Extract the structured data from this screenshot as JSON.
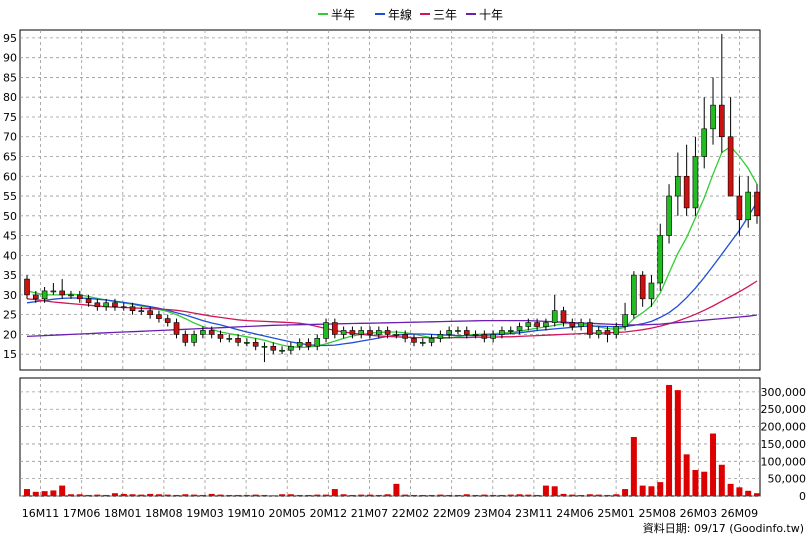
{
  "chart_data": {
    "type": "candlestick",
    "legend": {
      "position": "top-center",
      "items": [
        {
          "key": "ma_half",
          "name": "半年",
          "color": "#33cc33"
        },
        {
          "key": "ma_year",
          "name": "年線",
          "color": "#1e4fd8"
        },
        {
          "key": "ma_3y",
          "name": "三年",
          "color": "#d4145a"
        },
        {
          "key": "ma_10y",
          "name": "十年",
          "color": "#6a1fb0"
        }
      ]
    },
    "x_ticks": [
      "16M11",
      "17M06",
      "18M01",
      "18M08",
      "19M03",
      "19M10",
      "20M05",
      "20M12",
      "21M07",
      "22M02",
      "22M09",
      "23M04",
      "23M11",
      "24M06",
      "25M01",
      "25M08",
      "26M03",
      "26M09"
    ],
    "price_axis": {
      "ticks": [
        15,
        20,
        25,
        30,
        35,
        40,
        45,
        50,
        55,
        60,
        65,
        70,
        75,
        80,
        85,
        90,
        95
      ],
      "ylim": [
        11,
        97
      ]
    },
    "volume_axis": {
      "ticks": [
        "0",
        "50,000",
        "100,000",
        "150,000",
        "200,000",
        "250,000",
        "300,000"
      ],
      "ylim": [
        0,
        340000
      ]
    },
    "grid": true,
    "colors": {
      "up": "#22bb22",
      "down": "#cc1111",
      "volume": "#dd0000",
      "grid": "#999999"
    },
    "candles": {
      "open": [
        34,
        30,
        29,
        31,
        31,
        30,
        30,
        29,
        28,
        27,
        28,
        27,
        27,
        26,
        26,
        25,
        24,
        23,
        20,
        18,
        20,
        21,
        20,
        19,
        19,
        18,
        18,
        17,
        17,
        16,
        16,
        17,
        18,
        17,
        19,
        23,
        20,
        21,
        20,
        21,
        20,
        21,
        20,
        20,
        19,
        18,
        18,
        19,
        20,
        21,
        21,
        20,
        20,
        19,
        20,
        21,
        21,
        22,
        23,
        22,
        23,
        26,
        23,
        22,
        23,
        20,
        21,
        20,
        22,
        25,
        35,
        29,
        33,
        45,
        55,
        60,
        52,
        65,
        72,
        78,
        70,
        55,
        49,
        56
      ],
      "close": [
        30,
        29,
        31,
        31,
        30,
        30,
        29,
        28,
        27,
        28,
        27,
        27,
        26,
        26,
        25,
        24,
        23,
        20,
        18,
        20,
        21,
        20,
        19,
        19,
        18,
        18,
        17,
        17,
        16,
        16,
        17,
        18,
        17,
        19,
        23,
        20,
        21,
        20,
        21,
        20,
        21,
        20,
        20,
        19,
        18,
        18,
        19,
        20,
        21,
        21,
        20,
        20,
        19,
        20,
        21,
        21,
        22,
        23,
        22,
        23,
        26,
        23,
        22,
        23,
        20,
        21,
        20,
        22,
        25,
        35,
        29,
        33,
        45,
        55,
        60,
        52,
        65,
        72,
        78,
        70,
        55,
        49,
        56,
        50
      ],
      "high": [
        35,
        31,
        32,
        33,
        34,
        31,
        31,
        30,
        29,
        29,
        29,
        28,
        28,
        27,
        27,
        26,
        25,
        24,
        21,
        21,
        22,
        22,
        21,
        20,
        20,
        19,
        19,
        18,
        18,
        17,
        18,
        19,
        19,
        20,
        24,
        24,
        22,
        22,
        22,
        22,
        22,
        22,
        21,
        21,
        20,
        19,
        20,
        21,
        22,
        22,
        22,
        21,
        21,
        21,
        22,
        22,
        23,
        24,
        24,
        24,
        30,
        27,
        24,
        24,
        24,
        22,
        22,
        23,
        28,
        36,
        36,
        35,
        48,
        58,
        66,
        68,
        70,
        80,
        85,
        96,
        80,
        60,
        60,
        58
      ],
      "low": [
        29,
        28,
        28,
        30,
        29,
        29,
        28,
        27,
        26,
        26,
        26,
        26,
        25,
        25,
        24,
        23,
        22,
        19,
        17,
        17,
        19,
        19,
        18,
        18,
        17,
        17,
        16,
        13,
        15,
        15,
        15,
        16,
        16,
        16,
        18,
        19,
        19,
        19,
        19,
        19,
        19,
        19,
        19,
        18,
        17,
        17,
        17,
        18,
        19,
        20,
        19,
        19,
        18,
        18,
        19,
        20,
        20,
        21,
        21,
        21,
        22,
        22,
        21,
        21,
        19,
        19,
        18,
        19,
        21,
        24,
        27,
        27,
        31,
        43,
        50,
        50,
        50,
        62,
        68,
        66,
        65,
        45,
        47,
        48
      ],
      "volume": [
        20000,
        12000,
        14000,
        16000,
        30000,
        5000,
        5000,
        3000,
        4000,
        3000,
        8000,
        6000,
        5000,
        4000,
        6000,
        5000,
        4000,
        3000,
        5000,
        4000,
        3000,
        6000,
        4000,
        3000,
        3000,
        3000,
        4000,
        3000,
        2000,
        5000,
        5000,
        3000,
        3000,
        4000,
        4000,
        20000,
        5000,
        3000,
        4000,
        4000,
        3000,
        5000,
        35000,
        4000,
        3000,
        3000,
        3000,
        4000,
        3000,
        3000,
        5000,
        3000,
        4000,
        3000,
        3000,
        4000,
        5000,
        4000,
        3000,
        30000,
        28000,
        6000,
        4000,
        3000,
        5000,
        4000,
        3000,
        5000,
        20000,
        170000,
        30000,
        28000,
        40000,
        320000,
        305000,
        120000,
        75000,
        70000,
        180000,
        90000,
        35000,
        25000,
        15000,
        8000
      ]
    },
    "ma_half": [
      31,
      30.5,
      30,
      30,
      30,
      30.2,
      30,
      29.6,
      29.1,
      28.7,
      28.3,
      28,
      27.6,
      27.2,
      26.8,
      26.3,
      25.8,
      25,
      24,
      22.9,
      22,
      21.3,
      20.6,
      20.2,
      19.8,
      19.4,
      19,
      18.5,
      17.9,
      17.3,
      16.9,
      16.7,
      16.8,
      17.1,
      17.6,
      18.3,
      19,
      19.6,
      20,
      20.3,
      20.5,
      20.6,
      20.6,
      20.4,
      20.1,
      19.6,
      19.2,
      19,
      19.1,
      19.4,
      19.8,
      20,
      20.1,
      20.2,
      20.3,
      20.5,
      20.8,
      21.2,
      21.6,
      21.9,
      22.3,
      22.7,
      22.8,
      22.6,
      22.3,
      21.9,
      21.5,
      21.3,
      21.8,
      24,
      25.5,
      27.3,
      30.5,
      35.5,
      40.5,
      44.5,
      49.5,
      54.5,
      60.5,
      66,
      67.5,
      65,
      62,
      58
    ],
    "ma_year": [
      28,
      28.3,
      28.6,
      28.9,
      29.1,
      29.2,
      29.2,
      29.1,
      28.9,
      28.7,
      28.4,
      28.1,
      27.8,
      27.4,
      27,
      26.6,
      26.1,
      25.5,
      24.9,
      24.2,
      23.5,
      22.9,
      22.4,
      21.8,
      21.2,
      20.6,
      20.1,
      19.6,
      19.1,
      18.6,
      18.1,
      17.7,
      17.4,
      17.2,
      17.2,
      17.3,
      17.6,
      17.9,
      18.3,
      18.7,
      19.1,
      19.5,
      19.8,
      20,
      20.1,
      20.1,
      20,
      19.9,
      19.8,
      19.7,
      19.7,
      19.7,
      19.8,
      19.9,
      20,
      20.2,
      20.4,
      20.7,
      21,
      21.2,
      21.4,
      21.6,
      21.8,
      22,
      22.1,
      22.1,
      22,
      21.9,
      22,
      22.3,
      22.7,
      23.3,
      24.3,
      25.5,
      27.2,
      29.3,
      31.7,
      34.4,
      37.3,
      40.3,
      43.3,
      46.3,
      49.8,
      53.5
    ],
    "ma_3y": [
      29,
      28.8,
      28.5,
      28.2,
      28,
      27.8,
      27.6,
      27.4,
      27.2,
      27,
      26.9,
      26.8,
      26.7,
      26.6,
      26.5,
      26.4,
      26.3,
      26.1,
      25.8,
      25.4,
      25,
      24.6,
      24.3,
      24,
      23.7,
      23.5,
      23.4,
      23.3,
      23.2,
      23.1,
      23,
      22.8,
      22.5,
      22,
      21.5,
      21,
      20.6,
      20.3,
      20,
      19.8,
      19.6,
      19.5,
      19.4,
      19.3,
      19.2,
      19.2,
      19.2,
      19.2,
      19.2,
      19.2,
      19.2,
      19.3,
      19.3,
      19.3,
      19.4,
      19.4,
      19.5,
      19.6,
      19.7,
      19.8,
      19.9,
      20,
      20.1,
      20.2,
      20.3,
      20.3,
      20.4,
      20.5,
      20.6,
      20.9,
      21.2,
      21.6,
      22.1,
      22.7,
      23.4,
      24.2,
      25.1,
      26.1,
      27.2,
      28.4,
      29.6,
      30.8,
      32.1,
      33.5
    ],
    "ma_10y": [
      19.5,
      19.6,
      19.7,
      19.8,
      19.9,
      20,
      20.1,
      20.2,
      20.3,
      20.4,
      20.5,
      20.6,
      20.7,
      20.8,
      20.9,
      21,
      21.1,
      21.2,
      21.3,
      21.4,
      21.5,
      21.6,
      21.7,
      21.8,
      21.9,
      22,
      22.1,
      22.2,
      22.3,
      22.35,
      22.4,
      22.45,
      22.5,
      22.55,
      22.6,
      22.65,
      22.7,
      22.75,
      22.8,
      22.85,
      22.9,
      22.95,
      23,
      23.05,
      23.1,
      23.15,
      23.2,
      23.25,
      23.3,
      23.35,
      23.4,
      23.45,
      23.5,
      23.5,
      23.5,
      23.5,
      23.5,
      23.5,
      23.4,
      23.3,
      23.2,
      23.1,
      23,
      22.9,
      22.8,
      22.7,
      22.6,
      22.5,
      22.4,
      22.4,
      22.4,
      22.5,
      22.6,
      22.8,
      23,
      23.2,
      23.4,
      23.6,
      23.8,
      24,
      24.2,
      24.4,
      24.6,
      24.9
    ],
    "footer": "資料日期: 09/17  (Goodinfo.tw)"
  }
}
